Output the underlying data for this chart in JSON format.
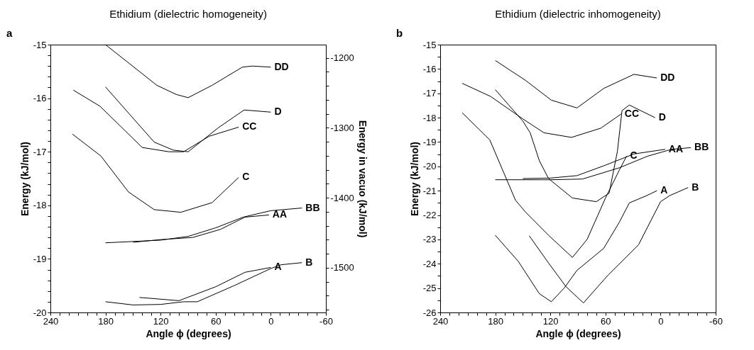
{
  "chart_data": [
    {
      "type": "line",
      "title": "Ethidium (dielectric homogeneity)",
      "xlabel": "Angle ϕ (degrees)",
      "ylabel": "Energy (kJ/mol)",
      "y2label": "Energy in vacuo (kJ/mol)",
      "annotations": [
        "a"
      ],
      "xlim": [
        240,
        -60
      ],
      "ylim": [
        -20,
        -15
      ],
      "y2lim": [
        -1564,
        -1181
      ],
      "xticks": [
        240,
        {
          "value": 230,
          "label": null
        },
        {
          "value": 220,
          "label": null
        },
        {
          "value": 210,
          "label": null
        },
        {
          "value": 200,
          "label": null
        },
        {
          "value": 190,
          "label": null
        },
        180,
        {
          "value": 170,
          "label": null
        },
        {
          "value": 160,
          "label": null
        },
        {
          "value": 150,
          "label": null
        },
        {
          "value": 140,
          "label": null
        },
        {
          "value": 130,
          "label": null
        },
        120,
        {
          "value": 110,
          "label": null
        },
        {
          "value": 100,
          "label": null
        },
        {
          "value": 90,
          "label": null
        },
        {
          "value": 80,
          "label": null
        },
        {
          "value": 70,
          "label": null
        },
        60,
        {
          "value": 50,
          "label": null
        },
        {
          "value": 40,
          "label": null
        },
        {
          "value": 30,
          "label": null
        },
        {
          "value": 20,
          "label": null
        },
        {
          "value": 10,
          "label": null
        },
        0,
        {
          "value": -10,
          "label": null
        },
        {
          "value": -20,
          "label": null
        },
        {
          "value": -30,
          "label": null
        },
        {
          "value": -40,
          "label": null
        },
        {
          "value": -50,
          "label": null
        },
        -60
      ],
      "yticks": [
        -15,
        {
          "value": -15.2,
          "label": null
        },
        {
          "value": -15.4,
          "label": null
        },
        {
          "value": -15.6,
          "label": null
        },
        {
          "value": -15.8,
          "label": null
        },
        -16,
        {
          "value": -16.2,
          "label": null
        },
        {
          "value": -16.4,
          "label": null
        },
        {
          "value": -16.6,
          "label": null
        },
        {
          "value": -16.8,
          "label": null
        },
        -17,
        {
          "value": -17.2,
          "label": null
        },
        {
          "value": -17.4,
          "label": null
        },
        {
          "value": -17.6,
          "label": null
        },
        {
          "value": -17.8,
          "label": null
        },
        -18,
        {
          "value": -18.2,
          "label": null
        },
        {
          "value": -18.4,
          "label": null
        },
        {
          "value": -18.6,
          "label": null
        },
        {
          "value": -18.8,
          "label": null
        },
        -19,
        {
          "value": -19.2,
          "label": null
        },
        {
          "value": -19.4,
          "label": null
        },
        {
          "value": -19.6,
          "label": null
        },
        {
          "value": -19.8,
          "label": null
        },
        -20
      ],
      "y2ticks": [
        -1200,
        {
          "value": -1220,
          "label": null
        },
        {
          "value": -1240,
          "label": null
        },
        {
          "value": -1260,
          "label": null
        },
        {
          "value": -1280,
          "label": null
        },
        -1300,
        {
          "value": -1320,
          "label": null
        },
        {
          "value": -1340,
          "label": null
        },
        {
          "value": -1360,
          "label": null
        },
        {
          "value": -1380,
          "label": null
        },
        -1400,
        {
          "value": -1420,
          "label": null
        },
        {
          "value": -1440,
          "label": null
        },
        {
          "value": -1460,
          "label": null
        },
        {
          "value": -1480,
          "label": null
        },
        -1500,
        {
          "value": -1520,
          "label": null
        },
        {
          "value": -1540,
          "label": null
        },
        {
          "value": -1560,
          "label": null
        }
      ],
      "series": [
        {
          "name": "DD",
          "color": "#000000",
          "x": [
            180,
            124,
            103,
            90,
            64,
            31,
            20,
            0
          ],
          "values": [
            -15.0,
            -15.76,
            -15.93,
            -15.99,
            -15.76,
            -15.42,
            -15.4,
            -15.42
          ]
        },
        {
          "name": "D",
          "color": "#000000",
          "x": [
            180,
            127,
            106,
            90,
            57,
            29,
            0
          ],
          "values": [
            -15.79,
            -16.82,
            -16.97,
            -17.0,
            -16.55,
            -16.22,
            -16.26
          ]
        },
        {
          "name": "CC",
          "color": "#000000",
          "x": [
            215,
            186,
            140,
            111,
            95,
            67,
            35
          ],
          "values": [
            -15.85,
            -16.15,
            -16.92,
            -17.0,
            -17.0,
            -16.71,
            -16.54
          ]
        },
        {
          "name": "C",
          "color": "#000000",
          "x": [
            216,
            185,
            155,
            127,
            98,
            64,
            35
          ],
          "values": [
            -16.67,
            -17.08,
            -17.75,
            -18.08,
            -18.13,
            -17.95,
            -17.48
          ]
        },
        {
          "name": "BB",
          "color": "#000000",
          "x": [
            180,
            120,
            90,
            60,
            30,
            0,
            -34
          ],
          "values": [
            -18.7,
            -18.65,
            -18.58,
            -18.42,
            -18.22,
            -18.1,
            -18.05
          ]
        },
        {
          "name": "AA",
          "color": "#000000",
          "x": [
            150,
            120,
            85,
            55,
            28,
            2
          ],
          "values": [
            -18.69,
            -18.64,
            -18.6,
            -18.45,
            -18.22,
            -18.18
          ]
        },
        {
          "name": "B",
          "color": "#000000",
          "x": [
            180,
            150,
            120,
            95,
            80,
            40,
            0,
            -11,
            -34
          ],
          "values": [
            -19.8,
            -19.86,
            -19.85,
            -19.8,
            -19.8,
            -19.5,
            -19.18,
            -19.11,
            -19.07
          ]
        },
        {
          "name": "A",
          "color": "#000000",
          "x": [
            143,
            100,
            60,
            28,
            0
          ],
          "values": [
            -19.72,
            -19.78,
            -19.52,
            -19.25,
            -19.16
          ]
        }
      ]
    },
    {
      "type": "line",
      "title": "Ethidium (dielectric inhomogeneity)",
      "xlabel": "Angle ϕ (degrees)",
      "ylabel": "Energy (kJ/mol)",
      "annotations": [
        "b"
      ],
      "xlim": [
        240,
        -60
      ],
      "ylim": [
        -26,
        -15
      ],
      "xticks": [
        240,
        {
          "value": 230,
          "label": null
        },
        {
          "value": 220,
          "label": null
        },
        {
          "value": 210,
          "label": null
        },
        {
          "value": 200,
          "label": null
        },
        {
          "value": 190,
          "label": null
        },
        180,
        {
          "value": 170,
          "label": null
        },
        {
          "value": 160,
          "label": null
        },
        {
          "value": 150,
          "label": null
        },
        {
          "value": 140,
          "label": null
        },
        {
          "value": 130,
          "label": null
        },
        120,
        {
          "value": 110,
          "label": null
        },
        {
          "value": 100,
          "label": null
        },
        {
          "value": 90,
          "label": null
        },
        {
          "value": 80,
          "label": null
        },
        {
          "value": 70,
          "label": null
        },
        60,
        {
          "value": 50,
          "label": null
        },
        {
          "value": 40,
          "label": null
        },
        {
          "value": 30,
          "label": null
        },
        {
          "value": 20,
          "label": null
        },
        {
          "value": 10,
          "label": null
        },
        0,
        {
          "value": -10,
          "label": null
        },
        {
          "value": -20,
          "label": null
        },
        {
          "value": -30,
          "label": null
        },
        {
          "value": -40,
          "label": null
        },
        {
          "value": -50,
          "label": null
        },
        -60
      ],
      "yticks": [
        -15,
        {
          "value": -15.5,
          "label": null
        },
        -16,
        {
          "value": -16.5,
          "label": null
        },
        -17,
        {
          "value": -17.5,
          "label": null
        },
        -18,
        {
          "value": -18.5,
          "label": null
        },
        -19,
        {
          "value": -19.5,
          "label": null
        },
        -20,
        {
          "value": -20.5,
          "label": null
        },
        -21,
        {
          "value": -21.5,
          "label": null
        },
        -22,
        {
          "value": -22.5,
          "label": null
        },
        -23,
        {
          "value": -23.5,
          "label": null
        },
        -24,
        {
          "value": -24.5,
          "label": null
        },
        -25,
        {
          "value": -25.5,
          "label": null
        },
        -26
      ],
      "series": [
        {
          "name": "DD",
          "color": "#000000",
          "x": [
            180,
            147,
            119,
            91,
            62,
            29,
            4
          ],
          "values": [
            -15.65,
            -16.47,
            -17.28,
            -17.6,
            -16.8,
            -16.22,
            -16.37
          ]
        },
        {
          "name": "D",
          "color": "#000000",
          "x": [
            180,
            150,
            142,
            132,
            122,
            96,
            70,
            56,
            47,
            42,
            34,
            6
          ],
          "values": [
            -16.85,
            -18.14,
            -18.62,
            -19.77,
            -20.5,
            -21.3,
            -21.45,
            -21.1,
            -19.38,
            -17.71,
            -17.48,
            -18.0
          ]
        },
        {
          "name": "CC",
          "color": "#000000",
          "x": [
            216,
            185,
            150,
            127,
            97,
            65,
            43
          ],
          "values": [
            -16.59,
            -17.13,
            -18.05,
            -18.62,
            -18.81,
            -18.43,
            -17.85
          ]
        },
        {
          "name": "C",
          "color": "#000000",
          "x": [
            216,
            186,
            171,
            158,
            147,
            122,
            96,
            80,
            60,
            45,
            37
          ],
          "values": [
            -17.8,
            -18.91,
            -20.24,
            -21.39,
            -21.88,
            -22.83,
            -23.74,
            -23.0,
            -21.3,
            -20.16,
            -19.58
          ]
        },
        {
          "name": "AA",
          "color": "#000000",
          "x": [
            150,
            120,
            91,
            60,
            29,
            -5
          ],
          "values": [
            -20.5,
            -20.48,
            -20.38,
            -19.95,
            -19.49,
            -19.3
          ]
        },
        {
          "name": "BB",
          "color": "#000000",
          "x": [
            180,
            120,
            85,
            45,
            14,
            -12,
            -33
          ],
          "values": [
            -20.55,
            -20.55,
            -20.52,
            -20.06,
            -19.58,
            -19.3,
            -19.23
          ]
        },
        {
          "name": "A",
          "color": "#000000",
          "x": [
            180,
            155,
            132,
            119,
            105,
            91,
            62,
            45,
            34,
            15,
            4
          ],
          "values": [
            -22.83,
            -23.9,
            -25.23,
            -25.56,
            -25.0,
            -24.27,
            -23.37,
            -22.3,
            -21.5,
            -21.2,
            -21.0
          ]
        },
        {
          "name": "B",
          "color": "#000000",
          "x": [
            143,
            122,
            103,
            84,
            57,
            24,
            0,
            -10,
            -30
          ],
          "values": [
            -22.85,
            -23.97,
            -24.94,
            -25.61,
            -24.46,
            -23.22,
            -21.45,
            -21.2,
            -20.87
          ]
        }
      ]
    }
  ]
}
